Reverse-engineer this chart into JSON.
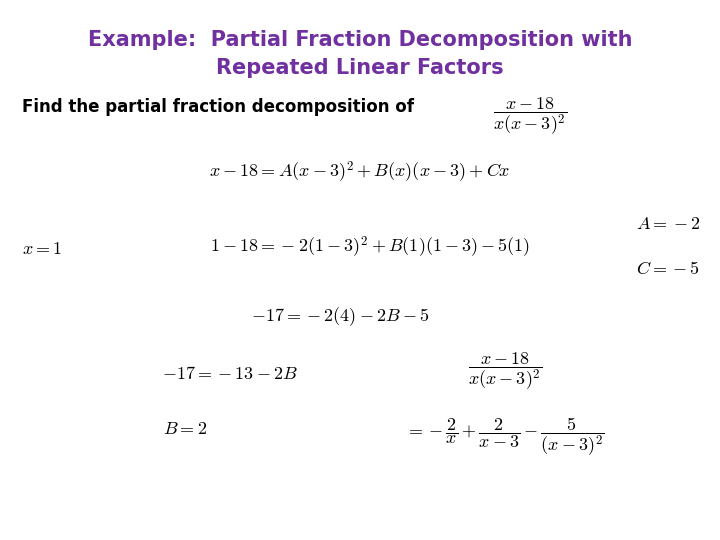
{
  "title_line1": "Example:  Partial Fraction Decomposition with",
  "title_line2": "Repeated Linear Factors",
  "title_color": "#7030A0",
  "background_color": "#ffffff",
  "text_color": "#000000",
  "figsize": [
    7.2,
    5.4
  ],
  "dpi": 100,
  "find_text": "Find the partial fraction decomposition of",
  "eq1": "$x - 18 = A(x-3)^2 + B(x)(x-3) + Cx$",
  "x1_label": "$x = 1$",
  "eq2": "$1 - 18 = -2(1-3)^2 + B(1)(1-3) - 5(1)$",
  "A_result": "$A = -2$",
  "C_result": "$C = -5$",
  "eq3": "$-17 = -2(4) - 2B - 5$",
  "eq4": "$-17 = -13 - 2B$",
  "B_result": "$B = 2$"
}
